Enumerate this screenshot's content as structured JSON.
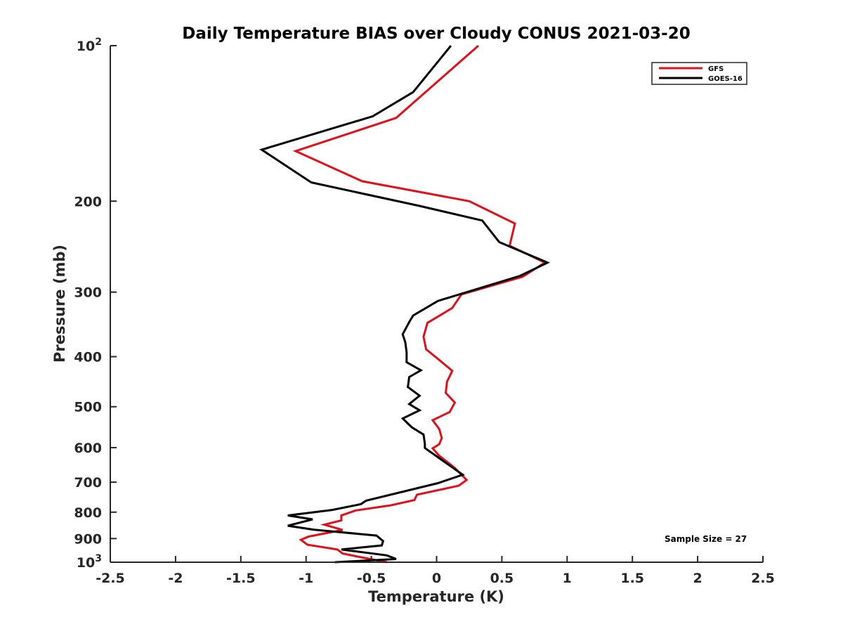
{
  "chart_data": {
    "type": "line",
    "title": "Daily Temperature BIAS over Cloudy CONUS 2021-03-20",
    "xlabel": "Temperature (K)",
    "ylabel": "Pressure (mb)",
    "xlim": [
      -2.5,
      2.5
    ],
    "ylim": [
      100,
      1000
    ],
    "y_scale": "log",
    "y_reversed": true,
    "grid": false,
    "legend_position": "top-right",
    "x_ticks": [
      "-2.5",
      "-2",
      "-1.5",
      "-1",
      "-0.5",
      "0",
      "0.5",
      "1",
      "1.5",
      "2",
      "2.5"
    ],
    "x_tick_values": [
      -2.5,
      -2,
      -1.5,
      -1,
      -0.5,
      0,
      0.5,
      1,
      1.5,
      2,
      2.5
    ],
    "y_ticks": [
      {
        "value": 100,
        "label": "10",
        "sup": "2"
      },
      {
        "value": 200,
        "label": "200",
        "sup": ""
      },
      {
        "value": 300,
        "label": "300",
        "sup": ""
      },
      {
        "value": 400,
        "label": "400",
        "sup": ""
      },
      {
        "value": 500,
        "label": "500",
        "sup": ""
      },
      {
        "value": 600,
        "label": "600",
        "sup": ""
      },
      {
        "value": 700,
        "label": "700",
        "sup": ""
      },
      {
        "value": 800,
        "label": "800",
        "sup": ""
      },
      {
        "value": 900,
        "label": "900",
        "sup": ""
      },
      {
        "value": 1000,
        "label": "10",
        "sup": "3"
      }
    ],
    "annotation": "Sample Size = 27",
    "series": [
      {
        "name": "GFS",
        "color": "#e0101a",
        "points": [
          [
            0.32,
            100
          ],
          [
            -0.31,
            138
          ],
          [
            -1.08,
            160
          ],
          [
            -0.57,
            183
          ],
          [
            0.25,
            200
          ],
          [
            0.6,
            221
          ],
          [
            0.56,
            244
          ],
          [
            0.83,
            263
          ],
          [
            0.66,
            280
          ],
          [
            0.19,
            303
          ],
          [
            0.12,
            322
          ],
          [
            -0.07,
            344
          ],
          [
            -0.1,
            366
          ],
          [
            -0.08,
            387
          ],
          [
            0.01,
            404
          ],
          [
            0.12,
            426
          ],
          [
            0.08,
            447
          ],
          [
            0.07,
            470
          ],
          [
            0.14,
            491
          ],
          [
            0.1,
            512
          ],
          [
            -0.03,
            531
          ],
          [
            0.02,
            552
          ],
          [
            0.04,
            575
          ],
          [
            0.02,
            591
          ],
          [
            -0.03,
            602
          ],
          [
            0.02,
            622
          ],
          [
            0.14,
            657
          ],
          [
            0.23,
            693
          ],
          [
            0.17,
            711
          ],
          [
            -0.15,
            740
          ],
          [
            -0.17,
            758
          ],
          [
            -0.35,
            776
          ],
          [
            -0.62,
            794
          ],
          [
            -0.73,
            812
          ],
          [
            -0.73,
            830
          ],
          [
            -0.86,
            846
          ],
          [
            -0.72,
            866
          ],
          [
            -0.98,
            892
          ],
          [
            -1.04,
            905
          ],
          [
            -0.99,
            925
          ],
          [
            -0.76,
            945
          ],
          [
            -0.72,
            962
          ],
          [
            -0.58,
            978
          ],
          [
            -0.38,
            1000
          ]
        ]
      },
      {
        "name": "GOES-16",
        "color": "#000000",
        "points": [
          [
            0.11,
            100
          ],
          [
            -0.18,
            123
          ],
          [
            -0.49,
            137
          ],
          [
            -1.34,
            159
          ],
          [
            -0.96,
            184
          ],
          [
            -0.14,
            204
          ],
          [
            0.35,
            218
          ],
          [
            0.48,
            240
          ],
          [
            0.85,
            263
          ],
          [
            0.64,
            279
          ],
          [
            0.01,
            312
          ],
          [
            -0.18,
            333
          ],
          [
            -0.21,
            343
          ],
          [
            -0.26,
            362
          ],
          [
            -0.24,
            375
          ],
          [
            -0.23,
            392
          ],
          [
            -0.23,
            410
          ],
          [
            -0.12,
            425
          ],
          [
            -0.21,
            438
          ],
          [
            -0.22,
            458
          ],
          [
            -0.13,
            476
          ],
          [
            -0.21,
            494
          ],
          [
            -0.13,
            508
          ],
          [
            -0.26,
            527
          ],
          [
            -0.19,
            548
          ],
          [
            -0.1,
            566
          ],
          [
            -0.09,
            590
          ],
          [
            -0.09,
            601
          ],
          [
            0.2,
            677
          ],
          [
            0.01,
            703
          ],
          [
            -0.54,
            760
          ],
          [
            -0.58,
            772
          ],
          [
            -0.8,
            792
          ],
          [
            -1.14,
            812
          ],
          [
            -0.95,
            826
          ],
          [
            -1.14,
            850
          ],
          [
            -0.94,
            865
          ],
          [
            -0.46,
            888
          ],
          [
            -0.41,
            910
          ],
          [
            -0.42,
            928
          ],
          [
            -0.73,
            945
          ],
          [
            -0.38,
            970
          ],
          [
            -0.31,
            986
          ],
          [
            -0.78,
            1000
          ]
        ]
      }
    ]
  }
}
